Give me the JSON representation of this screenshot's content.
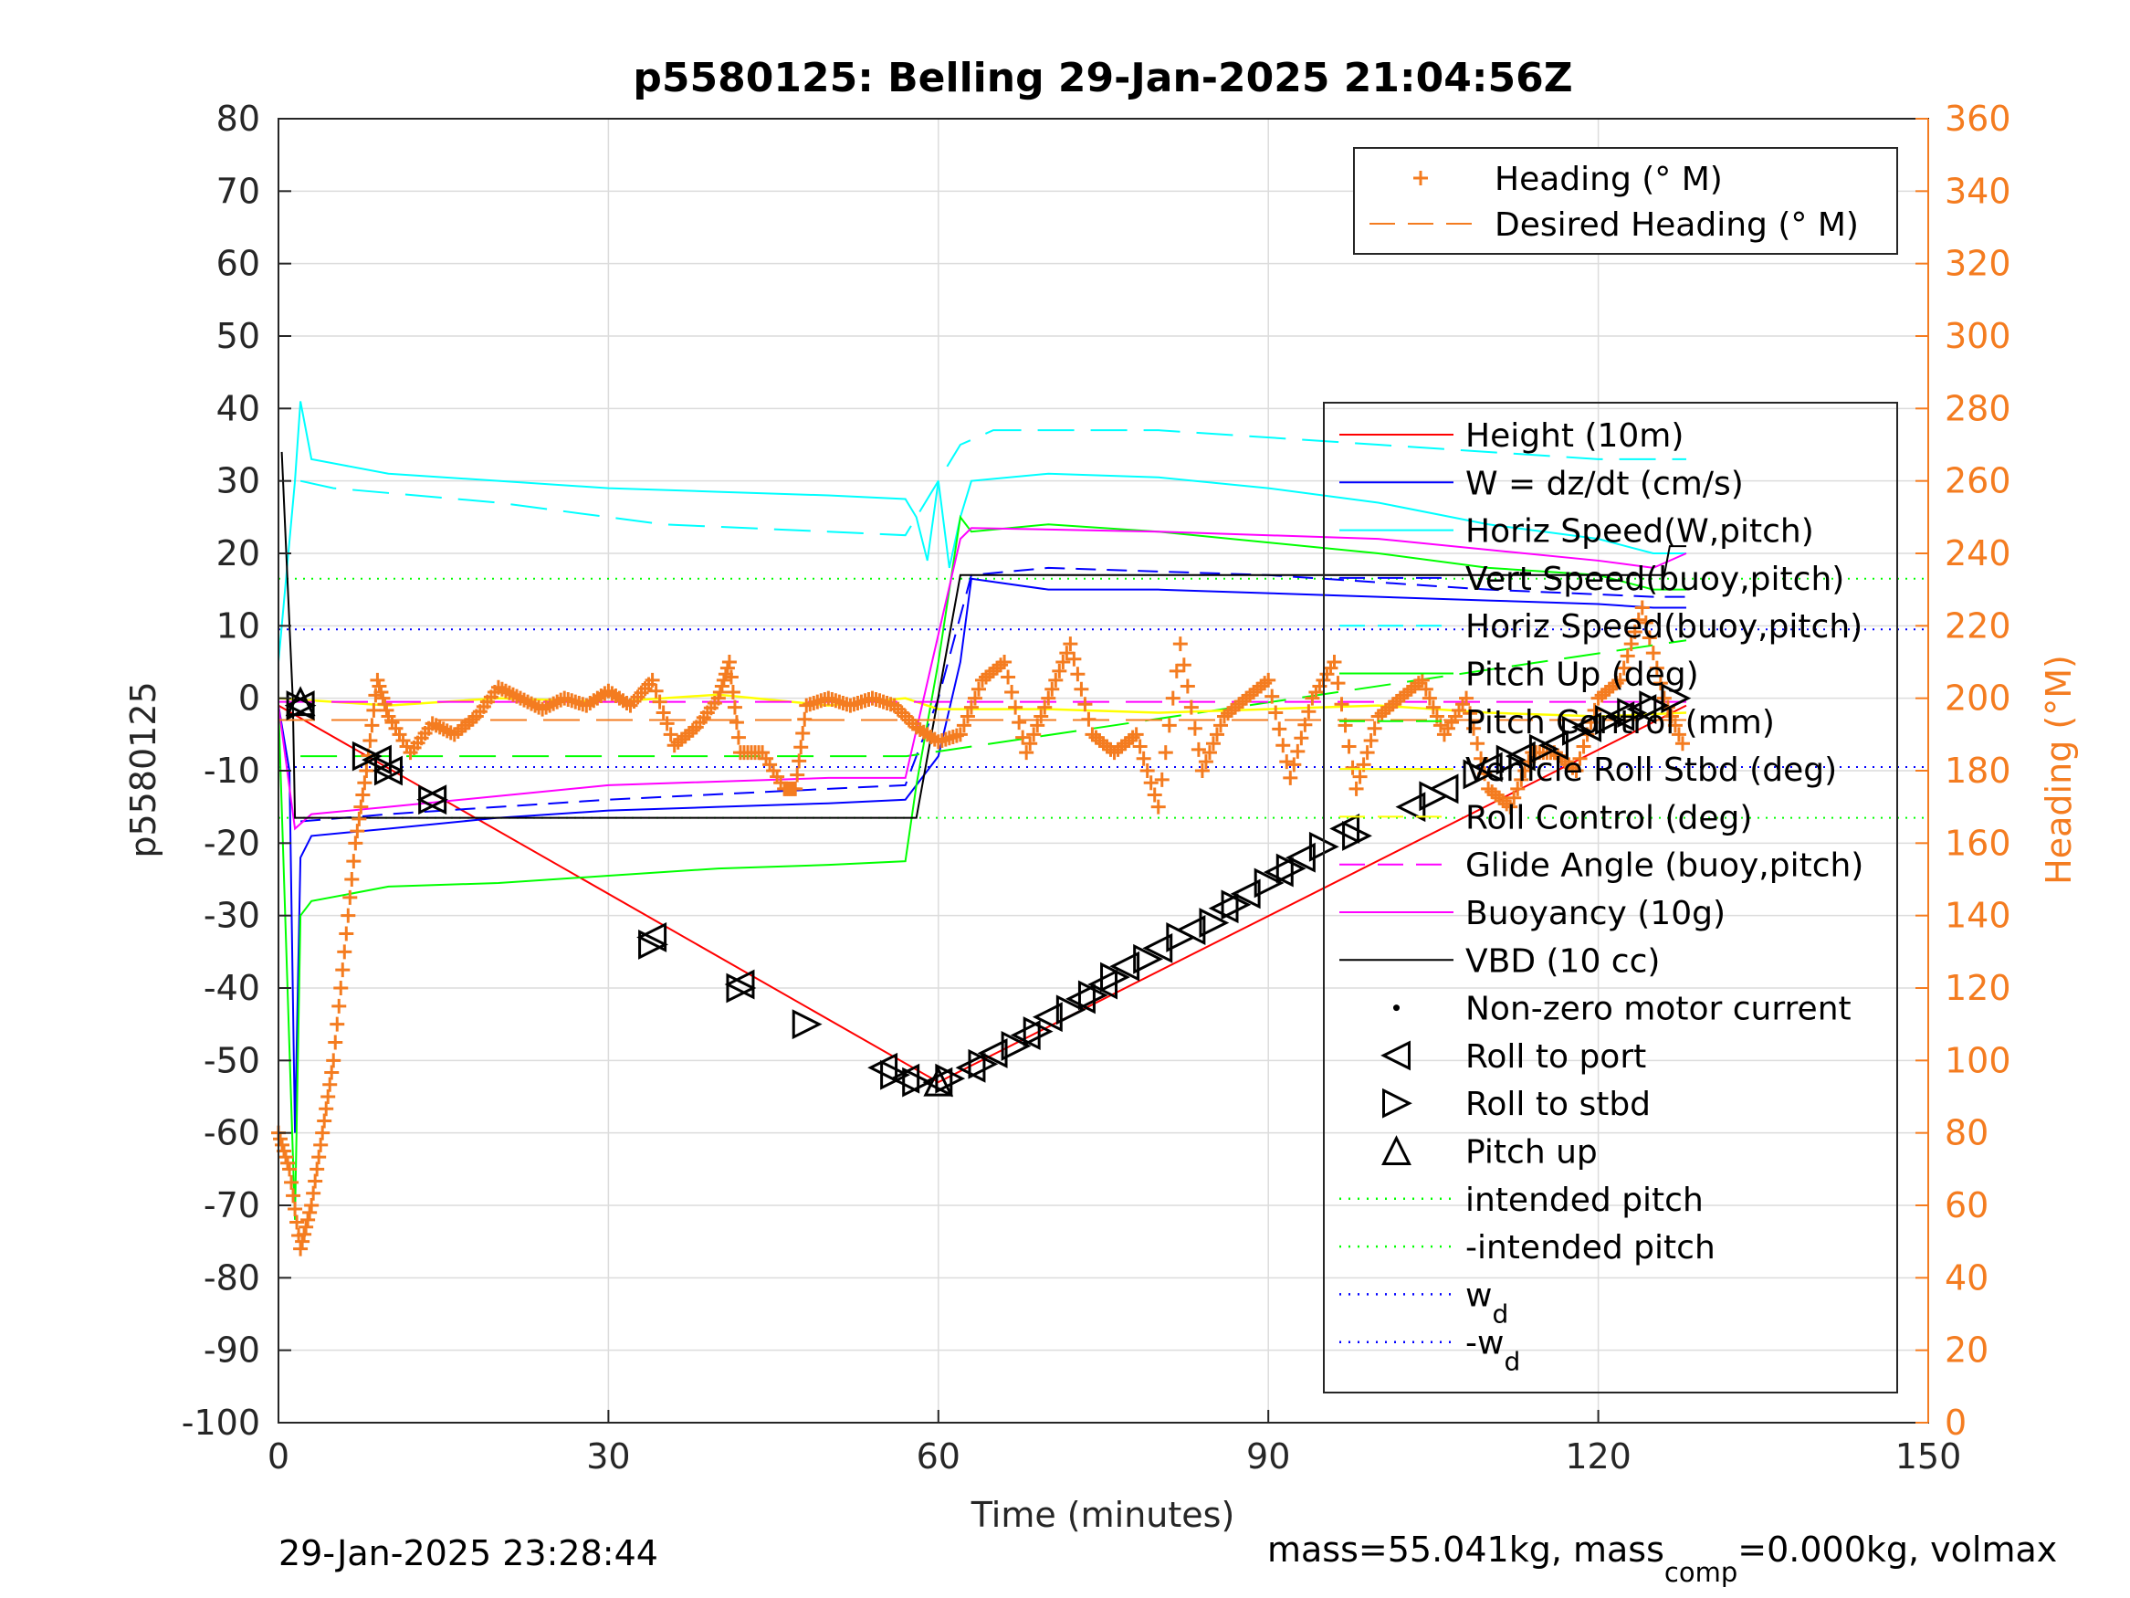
{
  "chart_data": {
    "type": "line",
    "title": "p5580125: Belling 29-Jan-2025 21:04:56Z",
    "xlabel": "Time (minutes)",
    "ylabel": "p5580125",
    "y2label": "Heading (°M)",
    "xlim": [
      0,
      150
    ],
    "ylim": [
      -100,
      80
    ],
    "y2lim": [
      0,
      360
    ],
    "xticks": [
      "0",
      "30",
      "60",
      "90",
      "120",
      "150"
    ],
    "yticks": [
      "80",
      "70",
      "60",
      "50",
      "40",
      "30",
      "20",
      "10",
      "0",
      "-10",
      "-20",
      "-30",
      "-40",
      "-50",
      "-60",
      "-70",
      "-80",
      "-90",
      "-100"
    ],
    "y2ticks": [
      "360",
      "340",
      "320",
      "300",
      "280",
      "260",
      "240",
      "220",
      "200",
      "180",
      "160",
      "140",
      "120",
      "100",
      "80",
      "60",
      "40",
      "20",
      "0"
    ],
    "grid": true,
    "footer_left": "29-Jan-2025 23:28:44",
    "footer_right": {
      "prefix": "mass=55.041kg, mass",
      "sub": "comp",
      "suffix": "=0.000kg, volmax"
    },
    "legend_top": [
      {
        "label": "Heading (° M)",
        "color": "#f47c20",
        "style": "plus"
      },
      {
        "label": "Desired Heading (° M)",
        "color": "#f47c20",
        "style": "dash"
      }
    ],
    "legend_main": [
      {
        "label": "Height (10m)",
        "color": "#ff0000",
        "style": "solid"
      },
      {
        "label": "W = dz/dt (cm/s)",
        "color": "#0000ff",
        "style": "solid"
      },
      {
        "label": "Horiz Speed(W,pitch)",
        "color": "#00ffff",
        "style": "solid"
      },
      {
        "label": "Vert Speed(buoy,pitch)",
        "color": "#0000ff",
        "style": "dash"
      },
      {
        "label": "Horiz Speed(buoy,pitch)",
        "color": "#00ffff",
        "style": "dash"
      },
      {
        "label": "Pitch Up (deg)",
        "color": "#00ff00",
        "style": "solid"
      },
      {
        "label": "Pitch Control (mm)",
        "color": "#00ff00",
        "style": "dash"
      },
      {
        "label": "Vehicle Roll Stbd (deg)",
        "color": "#ffff00",
        "style": "solid"
      },
      {
        "label": "Roll Control (deg)",
        "color": "#ffff00",
        "style": "dash"
      },
      {
        "label": "Glide Angle (buoy,pitch)",
        "color": "#ff00ff",
        "style": "dash"
      },
      {
        "label": "Buoyancy (10g)",
        "color": "#ff00ff",
        "style": "solid"
      },
      {
        "label": "VBD (10 cc)",
        "color": "#000000",
        "style": "solid"
      },
      {
        "label": "Non-zero motor current",
        "color": "#000000",
        "style": "dot"
      },
      {
        "label": "Roll to port",
        "color": "#000000",
        "style": "tri-left"
      },
      {
        "label": "Roll to stbd",
        "color": "#000000",
        "style": "tri-right"
      },
      {
        "label": "Pitch up",
        "color": "#000000",
        "style": "tri-up"
      },
      {
        "label": "intended pitch",
        "color": "#00ff00",
        "style": "dotted"
      },
      {
        "label": "-intended pitch",
        "color": "#00ff00",
        "style": "dotted"
      },
      {
        "label": "w",
        "sub": "d",
        "color": "#0000ff",
        "style": "dotted"
      },
      {
        "label": "-w",
        "sub": "d",
        "color": "#0000ff",
        "style": "dotted"
      }
    ],
    "reference_lines": {
      "intended_pitch": 16.5,
      "neg_intended_pitch": -16.5,
      "wd": 9.5,
      "neg_wd": -9.5
    },
    "series": [
      {
        "name": "Height (10m)",
        "color": "#ff0000",
        "x": [
          0,
          60,
          128
        ],
        "y": [
          -1,
          -53,
          -1
        ]
      },
      {
        "name": "W = dz/dt (cm/s)",
        "color": "#0000ff",
        "x": [
          0,
          1,
          1.5,
          2,
          3,
          10,
          20,
          30,
          40,
          50,
          57,
          58,
          60,
          62,
          63,
          70,
          80,
          90,
          100,
          110,
          120,
          125,
          128
        ],
        "y": [
          -1,
          -10,
          -60,
          -22,
          -19,
          -18,
          -16.5,
          -15.5,
          -15,
          -14.5,
          -14,
          -12,
          -8,
          5,
          16.5,
          15,
          15,
          14.5,
          14,
          13.5,
          13,
          12.5,
          12.5
        ]
      },
      {
        "name": "Horiz Speed(W,pitch)",
        "color": "#00ffff",
        "x": [
          0,
          1.5,
          2,
          3,
          10,
          20,
          30,
          40,
          50,
          57,
          58,
          59,
          60,
          61,
          62,
          63,
          70,
          80,
          90,
          100,
          110,
          120,
          125,
          128
        ],
        "y": [
          5,
          30,
          41,
          33,
          31,
          30,
          29,
          28.5,
          28,
          27.5,
          25,
          19,
          30,
          18,
          25,
          30,
          31,
          30.5,
          29,
          27,
          24,
          22,
          20,
          20
        ]
      },
      {
        "name": "Vert Speed(buoy,pitch)",
        "color": "#0000ff",
        "x": [
          2,
          10,
          30,
          50,
          57,
          60,
          63,
          70,
          90,
          110,
          125,
          128
        ],
        "y": [
          -17,
          -16,
          -14,
          -12.5,
          -12,
          0,
          17,
          18,
          17,
          15,
          14,
          14
        ]
      },
      {
        "name": "Horiz Speed(buoy,pitch)",
        "color": "#00ffff",
        "x": [
          2,
          5,
          20,
          35,
          50,
          57,
          62,
          65,
          80,
          100,
          120,
          128
        ],
        "y": [
          30,
          29,
          27,
          24,
          23,
          22.5,
          35,
          37,
          37,
          35,
          33,
          33
        ]
      },
      {
        "name": "Pitch Up (deg)",
        "color": "#00ff00",
        "x": [
          0,
          1.5,
          2,
          3,
          10,
          20,
          30,
          40,
          50,
          57,
          58,
          60,
          62,
          63,
          70,
          80,
          90,
          100,
          110,
          120,
          125,
          128
        ],
        "y": [
          -1,
          -72,
          -30,
          -28,
          -26,
          -25.5,
          -24.5,
          -23.5,
          -23,
          -22.5,
          -12,
          5,
          25,
          23,
          24,
          23,
          21.5,
          20,
          18,
          17,
          15,
          15
        ]
      },
      {
        "name": "Pitch Control (mm)",
        "color": "#00ff00",
        "x": [
          2,
          57,
          57.1,
          128
        ],
        "y": [
          -8,
          -8,
          -8,
          8
        ]
      },
      {
        "name": "Vehicle Roll Stbd (deg)",
        "color": "#ffff00",
        "x": [
          0,
          10,
          20,
          30,
          40,
          50,
          57,
          60,
          70,
          80,
          90,
          100,
          110,
          120,
          128
        ],
        "y": [
          0,
          -1,
          0,
          -0.5,
          0.5,
          -1,
          0,
          -1.5,
          -1.5,
          -2,
          -1.5,
          -1,
          -2,
          -2.5,
          -2
        ]
      },
      {
        "name": "Glide Angle (buoy,pitch)",
        "color": "#ff00ff",
        "x": [
          0,
          128
        ],
        "y": [
          -0.5,
          -0.5
        ]
      },
      {
        "name": "Buoyancy (10g)",
        "color": "#ff00ff",
        "x": [
          0,
          1.5,
          3,
          10,
          30,
          50,
          57,
          62,
          63,
          80,
          100,
          120,
          125,
          128
        ],
        "y": [
          -1,
          -18,
          -16,
          -15,
          -12,
          -11,
          -11,
          22,
          23.5,
          23,
          22,
          19,
          18,
          20
        ]
      },
      {
        "name": "VBD (10 cc)",
        "color": "#000000",
        "x": [
          0.3,
          1.3,
          1.5,
          57,
          58,
          62,
          63,
          126,
          126.5,
          128
        ],
        "y": [
          34,
          0,
          -16.5,
          -16.5,
          -16.5,
          17,
          17,
          17,
          21,
          21
        ]
      },
      {
        "name": "Heading (° M)",
        "color": "#f47c20",
        "axis": "right",
        "x": [
          0,
          1,
          2,
          3,
          4,
          5,
          6,
          7,
          8,
          9,
          10,
          12,
          14,
          16,
          18,
          20,
          22,
          24,
          26,
          28,
          30,
          32,
          34,
          36,
          38,
          40,
          41,
          42,
          44,
          46,
          47,
          48,
          50,
          52,
          54,
          56,
          58,
          60,
          62,
          64,
          66,
          68,
          70,
          72,
          74,
          76,
          78,
          80,
          82,
          84,
          86,
          88,
          90,
          92,
          94,
          96,
          98,
          100,
          102,
          104,
          106,
          108,
          110,
          112,
          114,
          116,
          118,
          120,
          122,
          124,
          126,
          128
        ],
        "y": [
          80,
          70,
          48,
          60,
          80,
          100,
          130,
          160,
          180,
          205,
          195,
          185,
          193,
          190,
          195,
          203,
          200,
          197,
          200,
          198,
          202,
          198,
          205,
          187,
          192,
          200,
          210,
          185,
          185,
          175,
          175,
          198,
          200,
          198,
          200,
          198,
          192,
          188,
          190,
          205,
          210,
          185,
          200,
          215,
          190,
          185,
          190,
          170,
          215,
          180,
          195,
          200,
          205,
          178,
          200,
          210,
          175,
          195,
          200,
          205,
          190,
          200,
          175,
          170,
          185,
          185,
          180,
          200,
          205,
          225,
          200,
          185
        ]
      },
      {
        "name": "Desired Heading (° M)",
        "color": "#f47c20",
        "axis": "right",
        "x": [
          0,
          128
        ],
        "y": [
          194,
          194
        ]
      }
    ],
    "markers": {
      "roll_to_port": [
        [
          2,
          -1
        ],
        [
          9,
          -8.5
        ],
        [
          10,
          -10
        ],
        [
          14,
          -14
        ],
        [
          34,
          -33
        ],
        [
          42,
          -39.5
        ],
        [
          55,
          -51
        ],
        [
          57,
          -52.5
        ],
        [
          60,
          -53
        ],
        [
          63,
          -51
        ],
        [
          65,
          -49
        ],
        [
          68,
          -46.5
        ],
        [
          70,
          -44
        ],
        [
          73,
          -41.5
        ],
        [
          75,
          -39.5
        ],
        [
          77,
          -37
        ],
        [
          80,
          -34.5
        ],
        [
          83,
          -32
        ],
        [
          86,
          -29
        ],
        [
          88,
          -27
        ],
        [
          91,
          -24
        ],
        [
          93,
          -22
        ],
        [
          97,
          -18
        ],
        [
          103,
          -15
        ],
        [
          106,
          -12.5
        ],
        [
          110,
          -9.5
        ],
        [
          113,
          -8
        ],
        [
          116,
          -6.5
        ],
        [
          119,
          -4
        ],
        [
          122,
          -2.5
        ],
        [
          124,
          -1.5
        ]
      ],
      "roll_to_stbd": [
        [
          2,
          -1
        ],
        [
          8,
          -8
        ],
        [
          10,
          -10
        ],
        [
          14,
          -14
        ],
        [
          34,
          -34
        ],
        [
          42,
          -40
        ],
        [
          48,
          -45
        ],
        [
          56,
          -52
        ],
        [
          58,
          -53
        ],
        [
          61,
          -52.5
        ],
        [
          64,
          -50.5
        ],
        [
          67,
          -48
        ],
        [
          69,
          -46
        ],
        [
          72,
          -43
        ],
        [
          74,
          -41
        ],
        [
          76,
          -38.5
        ],
        [
          79,
          -36
        ],
        [
          82,
          -33
        ],
        [
          85,
          -31
        ],
        [
          87,
          -28.5
        ],
        [
          90,
          -25.5
        ],
        [
          92,
          -23.5
        ],
        [
          95,
          -20.5
        ],
        [
          98,
          -19
        ],
        [
          105,
          -13.5
        ],
        [
          109,
          -10.5
        ],
        [
          112,
          -8.5
        ],
        [
          115,
          -7
        ],
        [
          118,
          -4.5
        ],
        [
          121,
          -3
        ],
        [
          123,
          -2
        ],
        [
          125,
          -1
        ],
        [
          127,
          0
        ]
      ],
      "pitch_up": [
        [
          2,
          -0.5
        ],
        [
          60,
          -53
        ]
      ]
    }
  }
}
